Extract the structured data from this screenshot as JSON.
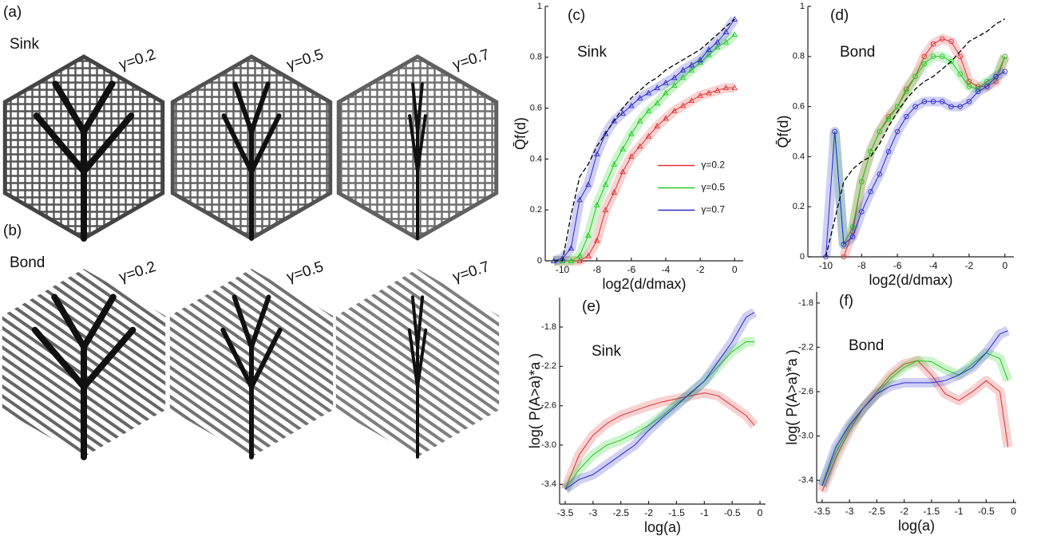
{
  "panels": [
    {
      "label": "(a)",
      "kind": "Sink",
      "gammas": [
        "γ=0.2",
        "γ=0.5",
        "γ=0.7"
      ]
    },
    {
      "label": "(b)",
      "kind": "Bond",
      "gammas": [
        "γ=0.2",
        "γ=0.5",
        "γ=0.7"
      ]
    }
  ],
  "chart_data": [
    {
      "type": "line",
      "panel": "(c)",
      "annotation": "Sink",
      "ylabel": "Q̄f(d)",
      "xlabel": "log2(d/dmax)",
      "marker": "triangle",
      "legend": "center right",
      "xlim": [
        -11,
        0.5
      ],
      "xticks": [
        -10,
        -8,
        -6,
        -4,
        -2,
        0
      ],
      "ylim": [
        0,
        1
      ],
      "yticks": [
        0,
        0.2,
        0.4,
        0.6,
        0.8,
        1
      ],
      "x": [
        -10.5,
        -10,
        -9.5,
        -9,
        -8.5,
        -8,
        -7.5,
        -7,
        -6.5,
        -6,
        -5.5,
        -5,
        -4.5,
        -4,
        -3.5,
        -3,
        -2.5,
        -2,
        -1.5,
        -1,
        -0.5,
        0
      ],
      "series": [
        {
          "name": "γ=0.2",
          "color": "#e03030",
          "values": [
            0,
            0,
            0,
            0,
            0.02,
            0.08,
            0.2,
            0.27,
            0.35,
            0.41,
            0.45,
            0.49,
            0.53,
            0.56,
            0.59,
            0.61,
            0.63,
            0.65,
            0.66,
            0.67,
            0.68,
            0.68
          ]
        },
        {
          "name": "γ=0.5",
          "color": "#22cc22",
          "values": [
            0,
            0,
            0,
            0.02,
            0.1,
            0.22,
            0.3,
            0.38,
            0.44,
            0.5,
            0.55,
            0.59,
            0.62,
            0.66,
            0.69,
            0.72,
            0.75,
            0.78,
            0.81,
            0.84,
            0.86,
            0.89
          ]
        },
        {
          "name": "γ=0.7",
          "color": "#2a2ad0",
          "values": [
            0,
            0.01,
            0.05,
            0.24,
            0.3,
            0.42,
            0.5,
            0.55,
            0.58,
            0.61,
            0.64,
            0.66,
            0.68,
            0.7,
            0.72,
            0.75,
            0.77,
            0.79,
            0.83,
            0.86,
            0.9,
            0.95
          ]
        },
        {
          "color": "#000000",
          "dash": true,
          "values": [
            0,
            0,
            0.18,
            0.33,
            0.38,
            0.45,
            0.5,
            0.55,
            0.6,
            0.64,
            0.67,
            0.7,
            0.72,
            0.75,
            0.77,
            0.79,
            0.81,
            0.83,
            0.86,
            0.89,
            0.92,
            0.95
          ]
        }
      ]
    },
    {
      "type": "line",
      "panel": "(d)",
      "annotation": "Bond",
      "ylabel": "Q̄f(d)",
      "xlabel": "log2(d/dmax)",
      "marker": "circle",
      "xlim": [
        -11,
        0.5
      ],
      "xticks": [
        -10,
        -8,
        -6,
        -4,
        -2,
        0
      ],
      "ylim": [
        0,
        1
      ],
      "yticks": [
        0,
        0.2,
        0.4,
        0.6,
        0.8,
        1
      ],
      "x": [
        -10.5,
        -10,
        -9.5,
        -9,
        -8.5,
        -8,
        -7.5,
        -7,
        -6.5,
        -6,
        -5.5,
        -5,
        -4.5,
        -4,
        -3.5,
        -3,
        -2.5,
        -2,
        -1.5,
        -1,
        -0.5,
        0
      ],
      "series": [
        {
          "color": "#e03030",
          "values": [
            null,
            null,
            null,
            0,
            0.1,
            0.3,
            0.42,
            0.5,
            0.56,
            0.6,
            0.67,
            0.72,
            0.8,
            0.85,
            0.87,
            0.86,
            0.8,
            0.7,
            0.68,
            0.68,
            0.7,
            0.8
          ]
        },
        {
          "color": "#22cc22",
          "values": [
            null,
            null,
            0.5,
            0.05,
            0.12,
            0.3,
            0.42,
            0.5,
            0.55,
            0.6,
            0.66,
            0.72,
            0.77,
            0.8,
            0.8,
            0.78,
            0.73,
            0.68,
            0.67,
            0.7,
            0.72,
            0.8
          ]
        },
        {
          "color": "#2a2ad0",
          "values": [
            null,
            0,
            0.5,
            0.05,
            0.08,
            0.18,
            0.26,
            0.33,
            0.42,
            0.5,
            0.56,
            0.6,
            0.62,
            0.62,
            0.62,
            0.6,
            0.6,
            0.62,
            0.66,
            0.68,
            0.72,
            0.74
          ]
        },
        {
          "color": "#000000",
          "dash": true,
          "values": [
            null,
            0,
            0.15,
            0.3,
            0.35,
            0.38,
            0.4,
            0.45,
            0.52,
            0.58,
            0.63,
            0.67,
            0.7,
            0.72,
            0.75,
            0.78,
            0.82,
            0.86,
            0.88,
            0.9,
            0.93,
            0.95
          ]
        }
      ]
    },
    {
      "type": "line",
      "panel": "(e)",
      "annotation": "Sink",
      "ylabel": "log( P(A>a)*a )",
      "xlabel": "log(a)",
      "xlim": [
        -3.6,
        0.1
      ],
      "xticks": [
        -3.5,
        -3,
        -2.5,
        -2,
        -1.5,
        -1,
        -0.5,
        0
      ],
      "ylim": [
        -3.6,
        -1.5
      ],
      "yticks": [
        -3.4,
        {
          "value": -3,
          "label": "-3.0"
        },
        -2.6,
        -2.2,
        -1.8
      ],
      "x": [
        -3.5,
        -3.25,
        -3,
        -2.75,
        -2.5,
        -2.25,
        -2,
        -1.75,
        -1.5,
        -1.25,
        -1,
        -0.75,
        -0.5,
        -0.25,
        -0.1
      ],
      "series": [
        {
          "color": "#e03030",
          "values": [
            -3.45,
            -3.1,
            -2.9,
            -2.78,
            -2.7,
            -2.65,
            -2.6,
            -2.56,
            -2.53,
            -2.5,
            -2.47,
            -2.5,
            -2.6,
            -2.7,
            -2.8
          ]
        },
        {
          "color": "#22cc22",
          "values": [
            -3.45,
            -3.25,
            -3.1,
            -3,
            -2.95,
            -2.88,
            -2.8,
            -2.7,
            -2.58,
            -2.48,
            -2.35,
            -2.2,
            -2.05,
            -1.95,
            -1.95
          ]
        },
        {
          "color": "#2a2ad0",
          "values": [
            -3.45,
            -3.35,
            -3.3,
            -3.2,
            -3.1,
            -3,
            -2.85,
            -2.72,
            -2.6,
            -2.47,
            -2.35,
            -2.15,
            -1.95,
            -1.7,
            -1.65
          ]
        }
      ]
    },
    {
      "type": "line",
      "panel": "(f)",
      "annotation": "Bond",
      "ylabel": "log( P(A>a)*a )",
      "xlabel": "log(a)",
      "xlim": [
        -3.6,
        0.05
      ],
      "xticks": [
        -3.5,
        -3,
        -2.5,
        -2,
        -1.5,
        -1,
        -0.5,
        0
      ],
      "ylim": [
        -3.6,
        -1.7
      ],
      "yticks": [
        -3.4,
        {
          "value": -3,
          "label": "-3.0"
        },
        -2.6,
        -2.2,
        -1.8
      ],
      "x": [
        -3.5,
        -3.25,
        -3,
        -2.75,
        -2.5,
        -2.25,
        -2,
        -1.75,
        -1.5,
        -1.25,
        -1,
        -0.75,
        -0.5,
        -0.25,
        -0.1
      ],
      "series": [
        {
          "color": "#e03030",
          "values": [
            -3.5,
            -3.2,
            -2.95,
            -2.75,
            -2.6,
            -2.45,
            -2.35,
            -2.32,
            -2.45,
            -2.62,
            -2.68,
            -2.6,
            -2.5,
            -2.6,
            -3.1
          ]
        },
        {
          "color": "#22cc22",
          "values": [
            -3.45,
            -3.15,
            -2.92,
            -2.75,
            -2.62,
            -2.48,
            -2.38,
            -2.32,
            -2.33,
            -2.4,
            -2.45,
            -2.35,
            -2.25,
            -2.3,
            -2.5
          ]
        },
        {
          "color": "#2a2ad0",
          "values": [
            -3.45,
            -3.1,
            -2.9,
            -2.75,
            -2.62,
            -2.55,
            -2.52,
            -2.52,
            -2.52,
            -2.5,
            -2.45,
            -2.38,
            -2.25,
            -2.08,
            -2.05
          ]
        }
      ]
    }
  ]
}
